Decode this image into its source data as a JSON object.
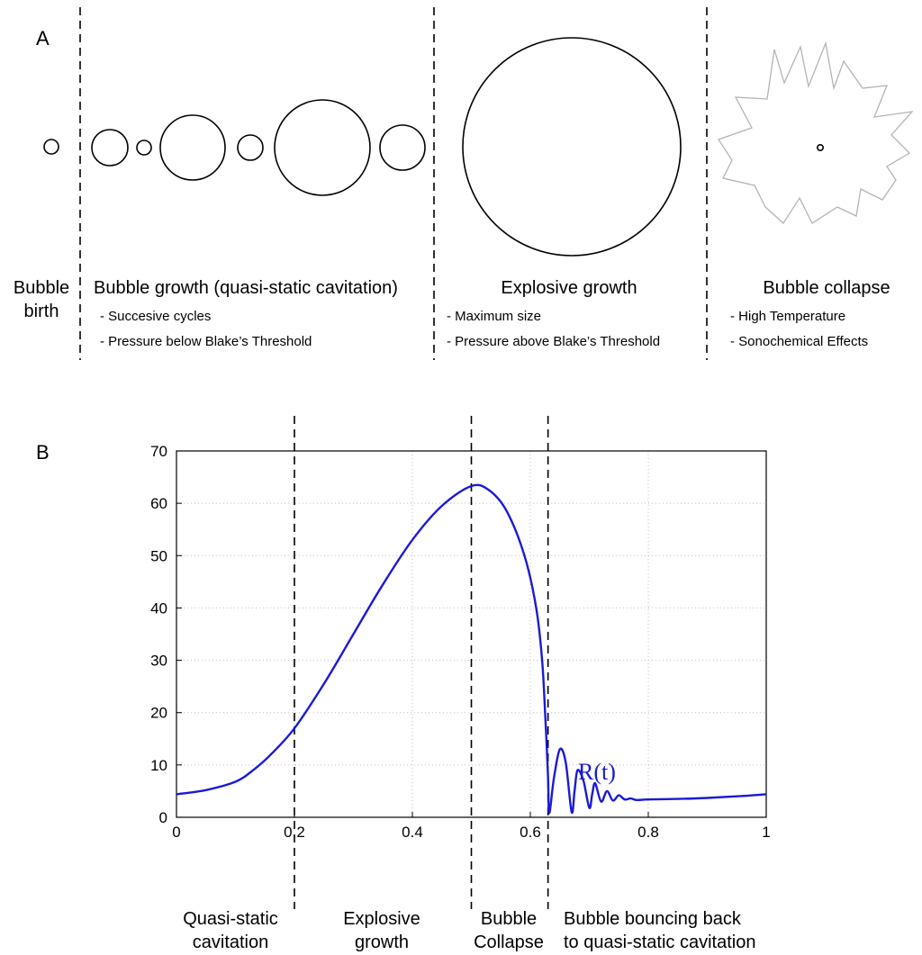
{
  "panel_a": {
    "letter": "A",
    "sections": [
      {
        "title_lines": [
          "Bubble",
          "birth"
        ],
        "notes": []
      },
      {
        "title_lines": [
          "Bubble growth (quasi-static cavitation)"
        ],
        "notes": [
          "- Succesive cycles",
          "- Pressure below Blake’s Threshold"
        ]
      },
      {
        "title_lines": [
          "Explosive growth"
        ],
        "notes": [
          "- Maximum size",
          "- Pressure above Blake’s Threshold"
        ]
      },
      {
        "title_lines": [
          "Bubble collapse"
        ],
        "notes": [
          "- High Temperature",
          "- Sonochemical Effects"
        ]
      }
    ],
    "colors": {
      "outline": "#000000",
      "collapse_star": "#b4b4b4"
    }
  },
  "panel_b": {
    "letter": "B",
    "curve_label": "R(t)",
    "phase_labels": [
      {
        "lines": [
          "Quasi-static",
          "cavitation"
        ]
      },
      {
        "lines": [
          "Explosive",
          "growth"
        ]
      },
      {
        "lines": [
          "Bubble",
          "Collapse"
        ]
      },
      {
        "lines": [
          "Bubble bouncing back",
          "to quasi-static cavitation"
        ]
      }
    ],
    "colors": {
      "curve": "#1a1ad6",
      "grid": "#c0c0c0"
    }
  },
  "chart_data": {
    "type": "line",
    "title": "",
    "xlabel": "",
    "ylabel": "",
    "xlim": [
      0,
      1
    ],
    "ylim": [
      0,
      70
    ],
    "grid": true,
    "x_ticks": [
      "0",
      "0.2",
      "0.4",
      "0.6",
      "0.8",
      "1"
    ],
    "y_ticks": [
      "0",
      "10",
      "20",
      "30",
      "40",
      "50",
      "60",
      "70"
    ],
    "phase_boundaries": [
      0.2,
      0.5,
      0.63
    ],
    "series": [
      {
        "name": "R(t)",
        "x": [
          0,
          0.05,
          0.1,
          0.13,
          0.16,
          0.2,
          0.25,
          0.3,
          0.35,
          0.4,
          0.45,
          0.5,
          0.53,
          0.56,
          0.59,
          0.61,
          0.62,
          0.625,
          0.63,
          0.632,
          0.64,
          0.65,
          0.66,
          0.67,
          0.675,
          0.68,
          0.69,
          0.7,
          0.705,
          0.71,
          0.72,
          0.73,
          0.74,
          0.75,
          0.76,
          0.77,
          0.78,
          0.8,
          0.85,
          0.9,
          0.95,
          1.0
        ],
        "y": [
          4.4,
          5.2,
          6.8,
          9.0,
          12.0,
          17.0,
          25.5,
          35.0,
          44.5,
          53.0,
          59.5,
          63.3,
          62.5,
          58.5,
          50.0,
          40.0,
          30.0,
          20.0,
          8.0,
          0.8,
          7.5,
          13.0,
          10.5,
          1.0,
          5.0,
          9.0,
          7.0,
          1.8,
          4.5,
          6.5,
          3.0,
          5.0,
          3.2,
          4.2,
          3.4,
          3.6,
          3.3,
          3.4,
          3.5,
          3.7,
          4.0,
          4.4
        ]
      }
    ]
  }
}
